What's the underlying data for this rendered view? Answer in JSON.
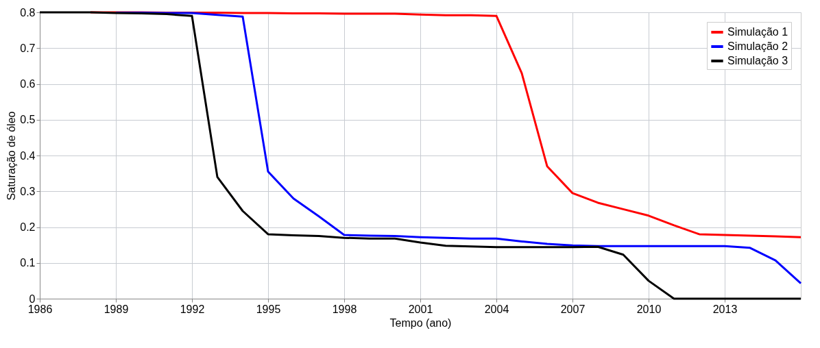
{
  "chart_data": {
    "type": "line",
    "xlabel": "Tempo (ano)",
    "ylabel": "Saturação de óleo",
    "x": [
      1986,
      1987,
      1988,
      1989,
      1990,
      1991,
      1992,
      1993,
      1994,
      1995,
      1996,
      1997,
      1998,
      1999,
      2000,
      2001,
      2002,
      2003,
      2004,
      2005,
      2006,
      2007,
      2008,
      2009,
      2010,
      2011,
      2012,
      2013,
      2014,
      2015,
      2016
    ],
    "series": [
      {
        "name": "Simulação 1",
        "color": "#ff0000",
        "values": [
          null,
          null,
          0.8,
          0.8,
          0.8,
          0.799,
          0.799,
          0.799,
          0.798,
          0.798,
          0.797,
          0.797,
          0.796,
          0.796,
          0.796,
          0.794,
          0.792,
          0.792,
          0.79,
          0.63,
          0.37,
          0.295,
          0.268,
          0.25,
          0.232,
          0.205,
          0.18,
          0.178,
          0.176,
          0.174,
          0.172
        ]
      },
      {
        "name": "Simulação 2",
        "color": "#0000ff",
        "values": [
          null,
          null,
          null,
          0.799,
          0.799,
          0.798,
          0.798,
          0.793,
          0.788,
          0.355,
          0.28,
          0.23,
          0.178,
          0.176,
          0.175,
          0.172,
          0.17,
          0.168,
          0.168,
          0.16,
          0.153,
          0.149,
          0.147,
          0.147,
          0.147,
          0.147,
          0.147,
          0.147,
          0.142,
          0.107,
          0.043
        ]
      },
      {
        "name": "Simulação 3",
        "color": "#000000",
        "values": [
          0.8,
          0.8,
          0.8,
          0.798,
          0.797,
          0.795,
          0.79,
          0.34,
          0.245,
          0.18,
          0.177,
          0.175,
          0.17,
          0.168,
          0.168,
          0.157,
          0.148,
          0.146,
          0.144,
          0.144,
          0.144,
          0.144,
          0.145,
          0.123,
          0.05,
          0,
          0,
          0,
          0,
          0,
          0
        ]
      }
    ],
    "xlim": [
      1986,
      2016
    ],
    "xticks": [
      1986,
      1989,
      1992,
      1995,
      1998,
      2001,
      2004,
      2007,
      2010,
      2013
    ],
    "ylim": [
      0,
      0.8
    ],
    "yticks": [
      {
        "value": 0,
        "label": "0"
      },
      0.1,
      0.2,
      0.3,
      0.4,
      0.5,
      0.6,
      0.7,
      0.8
    ],
    "grid": true,
    "legend": "top right",
    "line_style": "solid",
    "marker": "none"
  }
}
